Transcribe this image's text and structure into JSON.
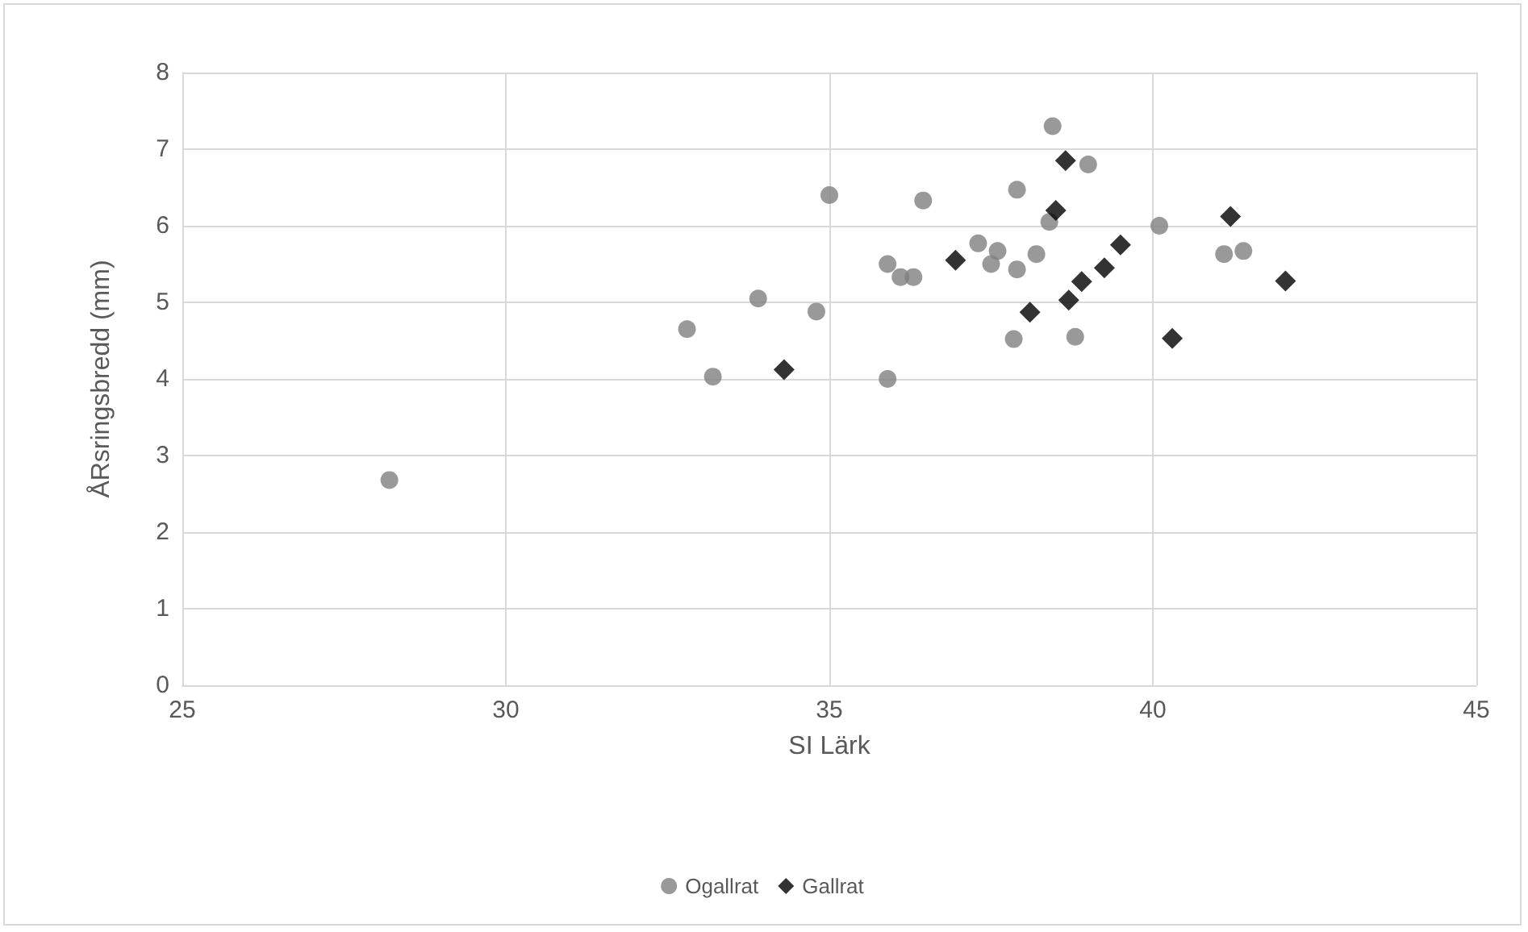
{
  "chart_data": {
    "type": "scatter",
    "xlabel": "SI Lärk",
    "ylabel": "ÅRsringsbredd (mm)",
    "xlim": [
      25,
      45
    ],
    "xticks": [
      25,
      30,
      35,
      40,
      45
    ],
    "ylim": [
      0,
      8
    ],
    "yticks": [
      0,
      1,
      2,
      3,
      4,
      5,
      6,
      7,
      8
    ],
    "grid": true,
    "legend": "bottom",
    "series": [
      {
        "name": "Ogallrat",
        "color": "#7f7f7f",
        "marker": "circle",
        "x": [
          28.2,
          32.8,
          33.2,
          33.9,
          34.8,
          35.0,
          35.9,
          35.9,
          36.1,
          36.3,
          36.45,
          37.3,
          37.5,
          37.6,
          37.85,
          37.9,
          37.9,
          38.2,
          38.4,
          38.45,
          38.8,
          39.0,
          40.1,
          41.1,
          41.4
        ],
        "values": [
          2.68,
          4.65,
          4.03,
          5.05,
          4.88,
          6.4,
          5.5,
          4.0,
          5.33,
          5.33,
          6.33,
          5.77,
          5.5,
          5.67,
          4.52,
          6.47,
          5.43,
          5.63,
          6.05,
          7.3,
          4.55,
          6.8,
          6.0,
          5.63,
          5.67
        ]
      },
      {
        "name": "Gallrat",
        "color": "#000000",
        "marker": "diamond",
        "x": [
          34.3,
          36.95,
          38.1,
          38.5,
          38.65,
          38.7,
          38.9,
          39.25,
          39.5,
          40.3,
          41.2,
          42.05
        ],
        "values": [
          4.12,
          5.55,
          4.87,
          6.2,
          6.85,
          5.03,
          5.27,
          5.45,
          5.75,
          4.53,
          6.12,
          5.28
        ]
      }
    ]
  }
}
